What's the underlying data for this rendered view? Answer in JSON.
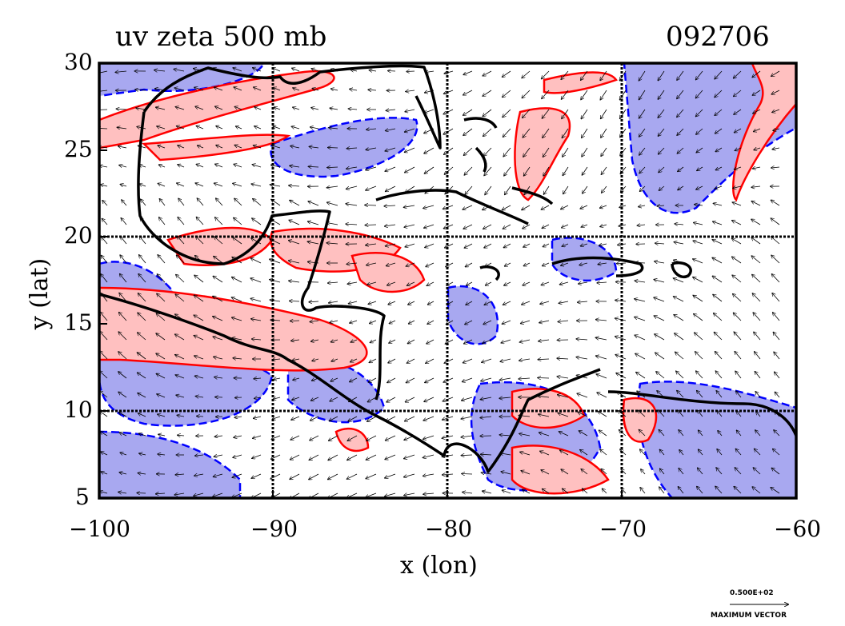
{
  "chart_data": {
    "type": "heatmap",
    "title": "uv zeta 500 mb",
    "date_label": "092706",
    "xlabel": "x (lon)",
    "ylabel": "y (lat)",
    "xlim": [
      -100,
      -60
    ],
    "ylim": [
      5,
      30
    ],
    "x_ticks": [
      "−100",
      "−90",
      "−80",
      "−70",
      "−60"
    ],
    "y_ticks": [
      "30",
      "25",
      "20",
      "15",
      "10",
      "5"
    ],
    "grid": true,
    "vector_key": {
      "value_label": "0.500E+02",
      "caption": "MAXIMUM VECTOR"
    },
    "colors": {
      "positive_contour": "#ff0000",
      "positive_fill": "#ffc0c0",
      "negative_contour": "#0000ff",
      "negative_fill": "#a8a8f0",
      "coastline": "#000000"
    }
  }
}
